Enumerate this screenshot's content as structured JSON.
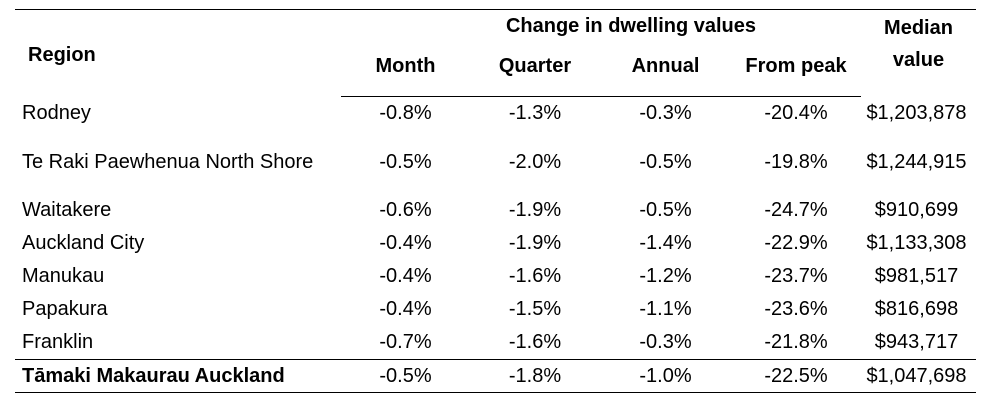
{
  "header": {
    "region": "Region",
    "group": "Change in dwelling values",
    "month": "Month",
    "quarter": "Quarter",
    "annual": "Annual",
    "from_peak": "From peak",
    "median_line1": "Median",
    "median_line2": "value"
  },
  "rows": [
    {
      "region": "Rodney",
      "month": "-0.8%",
      "quarter": "-1.3%",
      "annual": "-0.3%",
      "from_peak": "-20.4%",
      "median": "$1,203,878"
    },
    {
      "region": "Te Raki Paewhenua North Shore",
      "month": "-0.5%",
      "quarter": "-2.0%",
      "annual": "-0.5%",
      "from_peak": "-19.8%",
      "median": "$1,244,915"
    },
    {
      "region": "Waitakere",
      "month": "-0.6%",
      "quarter": "-1.9%",
      "annual": "-0.5%",
      "from_peak": "-24.7%",
      "median": "$910,699"
    },
    {
      "region": "Auckland City",
      "month": "-0.4%",
      "quarter": "-1.9%",
      "annual": "-1.4%",
      "from_peak": "-22.9%",
      "median": "$1,133,308"
    },
    {
      "region": "Manukau",
      "month": "-0.4%",
      "quarter": "-1.6%",
      "annual": "-1.2%",
      "from_peak": "-23.7%",
      "median": "$981,517"
    },
    {
      "region": "Papakura",
      "month": "-0.4%",
      "quarter": "-1.5%",
      "annual": "-1.1%",
      "from_peak": "-23.6%",
      "median": "$816,698"
    },
    {
      "region": "Franklin",
      "month": "-0.7%",
      "quarter": "-1.6%",
      "annual": "-0.3%",
      "from_peak": "-21.8%",
      "median": "$943,717"
    }
  ],
  "total": {
    "region": "Tāmaki Makaurau Auckland",
    "month": "-0.5%",
    "quarter": "-1.8%",
    "annual": "-1.0%",
    "from_peak": "-22.5%",
    "median": "$1,047,698"
  }
}
